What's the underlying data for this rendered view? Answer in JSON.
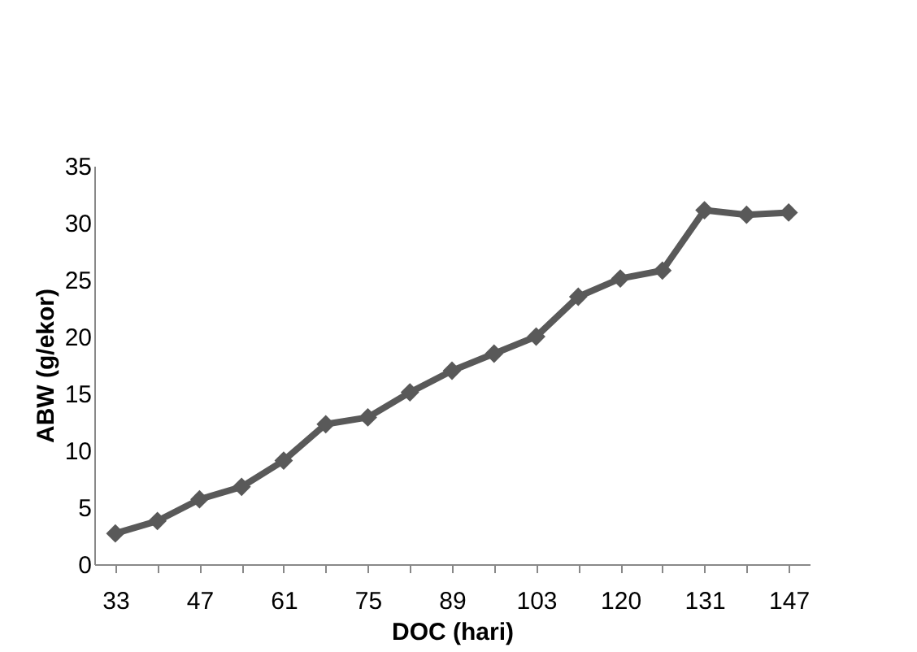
{
  "chart_data": {
    "type": "line",
    "xlabel": "DOC (hari)",
    "ylabel": "ABW (g/ekor)",
    "categories": [
      "33",
      null,
      "47",
      null,
      "61",
      null,
      "75",
      null,
      "89",
      null,
      "103",
      null,
      "120",
      null,
      "131",
      null,
      "147"
    ],
    "series": [
      {
        "color": "#595959",
        "values": [
          2.7,
          3.8,
          5.7,
          6.8,
          9.1,
          12.3,
          12.9,
          15.1,
          17.0,
          18.5,
          20.0,
          23.5,
          25.1,
          25.8,
          31.1,
          30.7,
          30.9
        ]
      }
    ],
    "ylim": [
      0,
      35
    ],
    "yticks": [
      0,
      5,
      10,
      15,
      20,
      25,
      30,
      35
    ],
    "grid": false,
    "marker": "diamond",
    "line_style": "solid"
  }
}
